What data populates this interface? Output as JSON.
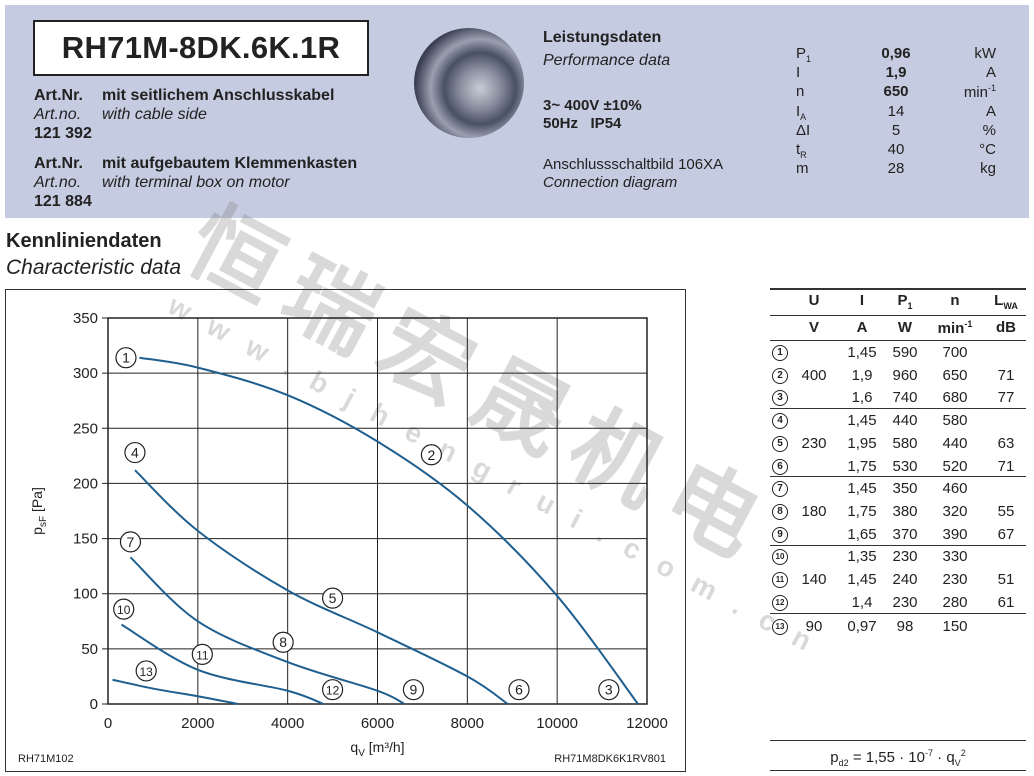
{
  "header": {
    "model": "RH71M-8DK.6K.1R",
    "variants": [
      {
        "label_de": "Art.Nr.",
        "desc_de": "mit seitlichem Anschlusskabel",
        "label_en": "Art.no.",
        "desc_en": "with cable side",
        "number": "121 392"
      },
      {
        "label_de": "Art.Nr.",
        "desc_de": "mit aufgebautem Klemmenkasten",
        "label_en": "Art.no.",
        "desc_en": "with terminal box on motor",
        "number": "121 884"
      }
    ],
    "performance_title_de": "Leistungsdaten",
    "performance_title_en": "Performance data",
    "supply": "3~ 400V ±10%",
    "freq_ip": "50Hz   IP54",
    "connection_de": "Anschlussschaltbild 106XA",
    "connection_en": "Connection diagram",
    "performance": [
      {
        "sym": "P",
        "sub": "1",
        "value": "0,96",
        "unit": "kW",
        "bold": true
      },
      {
        "sym": "I",
        "sub": "",
        "value": "1,9",
        "unit": "A",
        "bold": true
      },
      {
        "sym": "n",
        "sub": "",
        "value": "650",
        "unit": "min",
        "unit_sup": "-1",
        "bold": true
      },
      {
        "sym": "I",
        "sub": "A",
        "value": "14",
        "unit": "A",
        "bold": false
      },
      {
        "sym": "ΔI",
        "sub": "",
        "value": "5",
        "unit": "%",
        "bold": false
      },
      {
        "sym": "t",
        "sub": "R",
        "value": "40",
        "unit": "°C",
        "bold": false
      },
      {
        "sym": "m",
        "sub": "",
        "value": "28",
        "unit": "kg",
        "bold": false
      }
    ]
  },
  "section": {
    "title_de": "Kennliniendaten",
    "title_en": "Characteristic data"
  },
  "chart_data": {
    "type": "line",
    "xlabel": "q",
    "xlabel_sub": "V",
    "xlabel_unit": " [m³/h]",
    "ylabel": "p",
    "ylabel_sub": "sF",
    "ylabel_unit": " [Pa]",
    "xlim": [
      0,
      12000
    ],
    "ylim": [
      0,
      350
    ],
    "xticks": [
      0,
      2000,
      4000,
      6000,
      8000,
      10000,
      12000
    ],
    "yticks": [
      0,
      50,
      100,
      150,
      200,
      250,
      300,
      350
    ],
    "grid": true,
    "line_color": "#1f5f8f",
    "series": [
      {
        "points": [
          [
            700,
            314
          ],
          [
            2000,
            305
          ],
          [
            4000,
            280
          ],
          [
            6000,
            238
          ],
          [
            8000,
            180
          ],
          [
            10000,
            98
          ],
          [
            11800,
            0
          ]
        ]
      },
      {
        "points": [
          [
            600,
            212
          ],
          [
            2000,
            157
          ],
          [
            4000,
            103
          ],
          [
            6000,
            65
          ],
          [
            8000,
            25
          ],
          [
            8900,
            0
          ]
        ]
      },
      {
        "points": [
          [
            500,
            133
          ],
          [
            2000,
            75
          ],
          [
            4000,
            38
          ],
          [
            6000,
            12
          ],
          [
            6600,
            0
          ]
        ]
      },
      {
        "points": [
          [
            300,
            72
          ],
          [
            2000,
            31
          ],
          [
            4000,
            12
          ],
          [
            4800,
            0
          ]
        ]
      },
      {
        "points": [
          [
            100,
            22
          ],
          [
            1000,
            14
          ],
          [
            2000,
            7
          ],
          [
            2900,
            0
          ]
        ]
      }
    ],
    "annotations": [
      {
        "text": "1",
        "x": 400,
        "y": 314
      },
      {
        "text": "2",
        "x": 7200,
        "y": 226
      },
      {
        "text": "3",
        "x": 11150,
        "y": 13
      },
      {
        "text": "4",
        "x": 600,
        "y": 228
      },
      {
        "text": "5",
        "x": 5000,
        "y": 96
      },
      {
        "text": "6",
        "x": 9150,
        "y": 13
      },
      {
        "text": "7",
        "x": 500,
        "y": 147
      },
      {
        "text": "8",
        "x": 3900,
        "y": 56
      },
      {
        "text": "9",
        "x": 6800,
        "y": 13
      },
      {
        "text": "10",
        "x": 350,
        "y": 86
      },
      {
        "text": "11",
        "x": 2100,
        "y": 45
      },
      {
        "text": "12",
        "x": 5000,
        "y": 13
      },
      {
        "text": "13",
        "x": 850,
        "y": 30
      }
    ],
    "footer_left": "RH71M102",
    "footer_right": "RH71M8DK6K1RV801"
  },
  "table": {
    "headers": [
      {
        "t": "U",
        "s": ""
      },
      {
        "t": "I",
        "s": ""
      },
      {
        "t": "P",
        "s": "1"
      },
      {
        "t": "n",
        "s": ""
      },
      {
        "t": "L",
        "s": "WA"
      }
    ],
    "units": [
      {
        "t": "V",
        "sup": ""
      },
      {
        "t": "A",
        "sup": ""
      },
      {
        "t": "W",
        "sup": ""
      },
      {
        "t": "min",
        "sup": "-1"
      },
      {
        "t": "dB",
        "sup": ""
      }
    ],
    "rows": [
      {
        "id": "1",
        "U": "",
        "I": "1,45",
        "P": "590",
        "n": "700",
        "L": ""
      },
      {
        "id": "2",
        "U": "400",
        "I": "1,9",
        "P": "960",
        "n": "650",
        "L": "71"
      },
      {
        "id": "3",
        "U": "",
        "I": "1,6",
        "P": "740",
        "n": "680",
        "L": "77"
      },
      {
        "id": "4",
        "U": "",
        "I": "1,45",
        "P": "440",
        "n": "580",
        "L": ""
      },
      {
        "id": "5",
        "U": "230",
        "I": "1,95",
        "P": "580",
        "n": "440",
        "L": "63"
      },
      {
        "id": "6",
        "U": "",
        "I": "1,75",
        "P": "530",
        "n": "520",
        "L": "71"
      },
      {
        "id": "7",
        "U": "",
        "I": "1,45",
        "P": "350",
        "n": "460",
        "L": ""
      },
      {
        "id": "8",
        "U": "180",
        "I": "1,75",
        "P": "380",
        "n": "320",
        "L": "55"
      },
      {
        "id": "9",
        "U": "",
        "I": "1,65",
        "P": "370",
        "n": "390",
        "L": "67"
      },
      {
        "id": "10",
        "U": "",
        "I": "1,35",
        "P": "230",
        "n": "330",
        "L": ""
      },
      {
        "id": "11",
        "U": "140",
        "I": "1,45",
        "P": "240",
        "n": "230",
        "L": "51"
      },
      {
        "id": "12",
        "U": "",
        "I": "1,4",
        "P": "230",
        "n": "280",
        "L": "61"
      },
      {
        "id": "13",
        "U": "90",
        "I": "0,97",
        "P": "98",
        "n": "150",
        "L": ""
      }
    ],
    "formula": {
      "p": "p",
      "p_sub": "d2",
      "mid": " = 1,55 · 10",
      "exp": "-7",
      "dot": " · q",
      "q_sub": "V",
      "q_sup": "2"
    }
  },
  "watermark": {
    "chinese": "恒瑞宏晟机电",
    "url": "www.bjhengrui.com.cn"
  }
}
